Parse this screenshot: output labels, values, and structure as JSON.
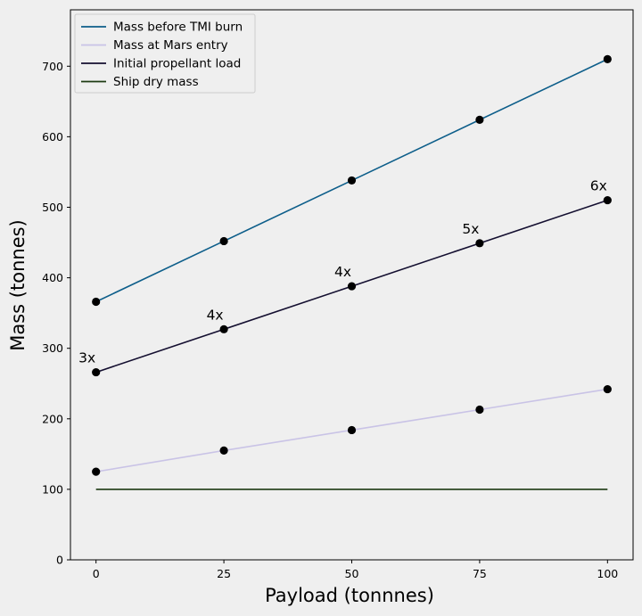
{
  "chart_data": {
    "type": "line",
    "title": "",
    "xlabel": "Payload (tonnnes)",
    "ylabel": "Mass (tonnes)",
    "x": [
      0,
      25,
      50,
      75,
      100
    ],
    "xlim": [
      -5,
      105
    ],
    "ylim": [
      0,
      780
    ],
    "xticks": [
      0,
      25,
      50,
      75,
      100
    ],
    "yticks": [
      0,
      100,
      200,
      300,
      400,
      500,
      600,
      700
    ],
    "grid": false,
    "legend_position": "top-left",
    "series": [
      {
        "name": "Mass before TMI burn",
        "color": "#0d5e8a",
        "values": [
          366,
          452,
          538,
          624,
          710
        ],
        "markers": true
      },
      {
        "name": "Mass at Mars entry",
        "color": "#c9c3e6",
        "values": [
          125,
          155,
          184,
          213,
          242
        ],
        "markers": true
      },
      {
        "name": "Initial propellant load",
        "color": "#140f30",
        "values": [
          266,
          327,
          388,
          449,
          510
        ],
        "markers": true
      },
      {
        "name": "Ship dry mass",
        "color": "#1d3a12",
        "values": [
          100,
          100,
          100,
          100,
          100
        ],
        "markers": false
      }
    ],
    "annotations": [
      {
        "text": "3x",
        "x": 0,
        "y": 266
      },
      {
        "text": "4x",
        "x": 25,
        "y": 327
      },
      {
        "text": "4x",
        "x": 50,
        "y": 388
      },
      {
        "text": "5x",
        "x": 75,
        "y": 449
      },
      {
        "text": "6x",
        "x": 100,
        "y": 510
      }
    ]
  }
}
